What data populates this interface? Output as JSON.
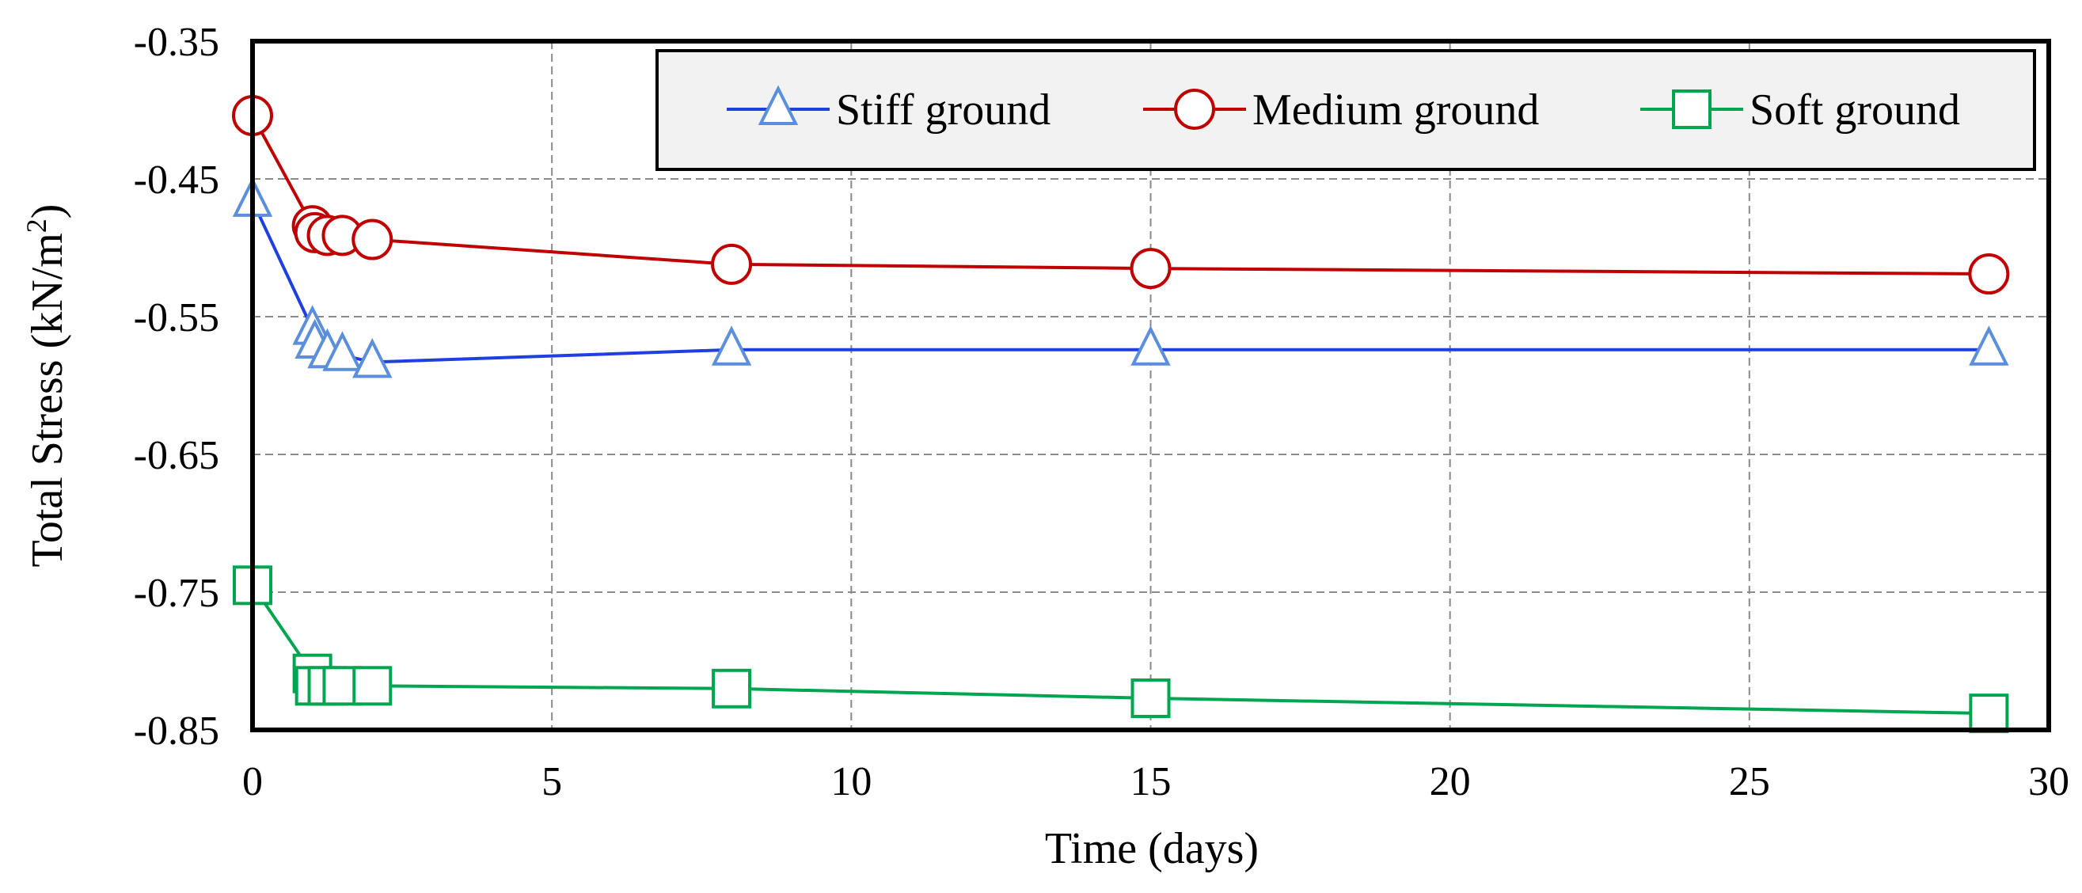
{
  "chart_data": {
    "type": "line",
    "xlabel": "Time (days)",
    "ylabel": "Total Stress (kN/m²)",
    "ylabel_parts": {
      "main": "Total Stress (kN/m",
      "sup": "2",
      "close": ")"
    },
    "xlim": [
      0,
      30
    ],
    "ylim": [
      -0.85,
      -0.35
    ],
    "xticks": [
      0,
      5,
      10,
      15,
      20,
      25,
      30
    ],
    "xtick_labels": [
      "0",
      "5",
      "10",
      "15",
      "20",
      "25",
      "30"
    ],
    "yticks": [
      -0.35,
      -0.45,
      -0.55,
      -0.65,
      -0.75,
      -0.85
    ],
    "ytick_labels": [
      "-0.35",
      "-0.45",
      "-0.55",
      "-0.65",
      "-0.75",
      "-0.85"
    ],
    "grid": true,
    "legend_position": "top-right",
    "series": [
      {
        "name": "Stiff ground",
        "marker": "triangle",
        "line_color": "#1f3fe0",
        "marker_color": "#5b8fdc",
        "x": [
          0,
          1,
          1.04,
          1.25,
          1.5,
          2,
          8,
          15,
          29
        ],
        "y": [
          -0.466,
          -0.559,
          -0.569,
          -0.576,
          -0.578,
          -0.583,
          -0.574,
          -0.574,
          -0.574
        ]
      },
      {
        "name": "Medium ground",
        "marker": "circle",
        "line_color": "#c00000",
        "marker_color": "#c00000",
        "x": [
          0,
          1,
          1.04,
          1.25,
          1.5,
          2,
          8,
          15,
          29
        ],
        "y": [
          -0.404,
          -0.484,
          -0.489,
          -0.491,
          -0.491,
          -0.494,
          -0.512,
          -0.515,
          -0.519
        ]
      },
      {
        "name": "Soft ground",
        "marker": "square",
        "line_color": "#00a550",
        "marker_color": "#00a550",
        "x": [
          0,
          1,
          1.04,
          1.25,
          1.5,
          2,
          8,
          15,
          29
        ],
        "y": [
          -0.745,
          -0.809,
          -0.818,
          -0.818,
          -0.818,
          -0.818,
          -0.82,
          -0.827,
          -0.838
        ]
      }
    ]
  }
}
